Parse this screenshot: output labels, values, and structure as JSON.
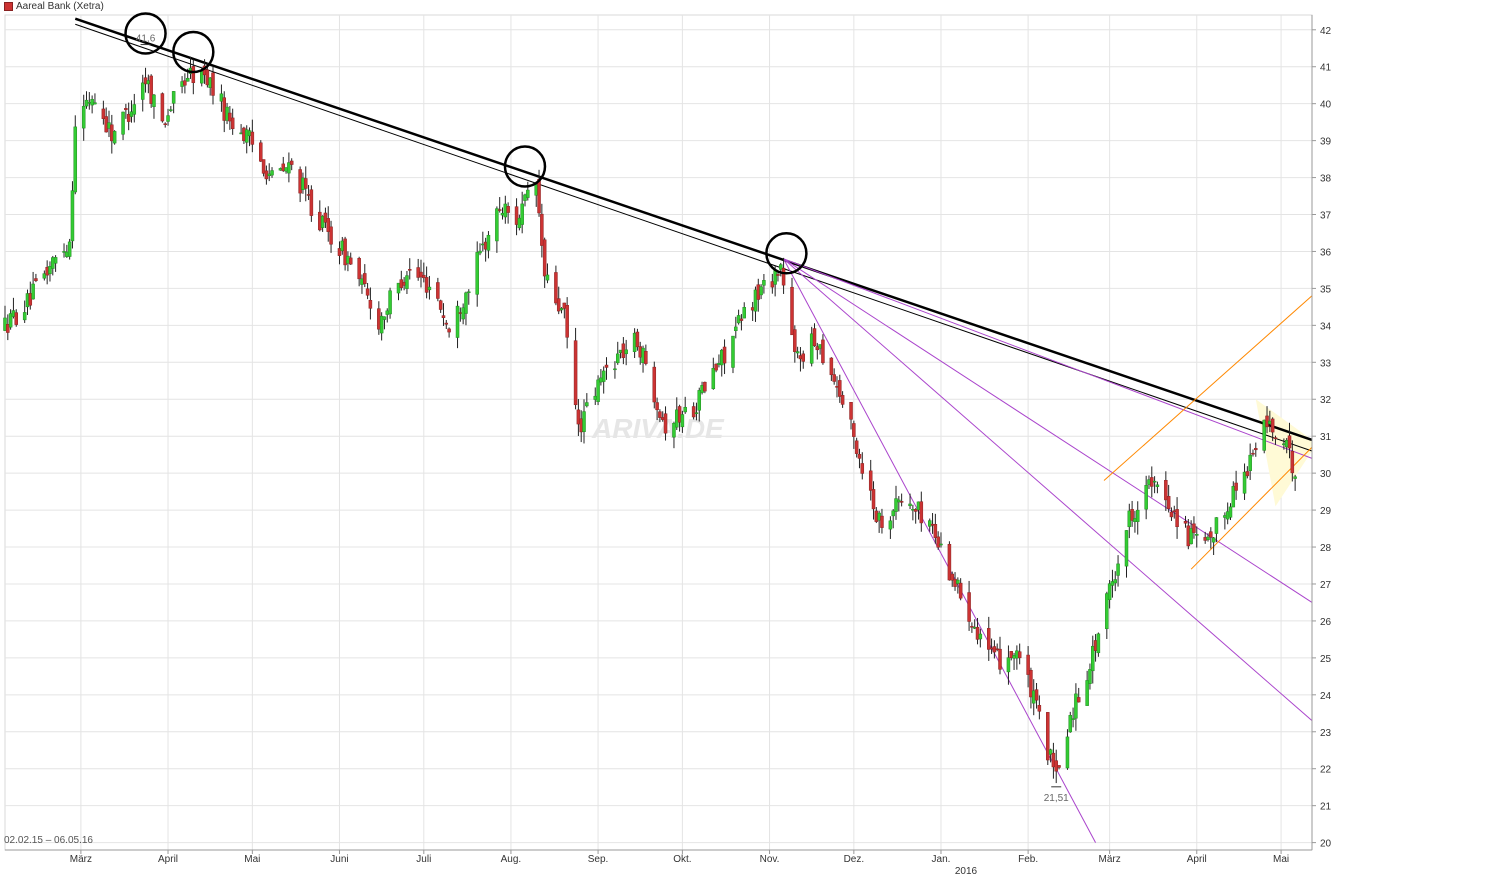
{
  "legend": {
    "label": "Aareal Bank (Xetra)",
    "color": "#cc3333"
  },
  "range_label": "02.02.15 – 06.05.16",
  "watermark": "ARIVA.DE",
  "year_label": "2016",
  "colors": {
    "up": "#33cc33",
    "down": "#cc3333",
    "trend": "#000000",
    "fan": "#aa44cc",
    "channel": "#ff8800",
    "triangle": "#fffad6"
  },
  "chart_data": {
    "type": "candlestick",
    "title": "",
    "y_ticks": [
      20,
      21,
      22,
      23,
      24,
      25,
      26,
      27,
      28,
      29,
      30,
      31,
      32,
      33,
      34,
      35,
      36,
      37,
      38,
      39,
      40,
      41,
      42
    ],
    "ylim": [
      19.8,
      42.4
    ],
    "x_range": [
      "2015-02-02",
      "2016-05-12"
    ],
    "x_ticks": [
      {
        "label": "März",
        "date": "2015-03-01"
      },
      {
        "label": "April",
        "date": "2015-04-01"
      },
      {
        "label": "Mai",
        "date": "2015-05-01"
      },
      {
        "label": "Juni",
        "date": "2015-06-01"
      },
      {
        "label": "Juli",
        "date": "2015-07-01"
      },
      {
        "label": "Aug.",
        "date": "2015-08-01"
      },
      {
        "label": "Sep.",
        "date": "2015-09-01"
      },
      {
        "label": "Okt.",
        "date": "2015-10-01"
      },
      {
        "label": "Nov.",
        "date": "2015-11-01"
      },
      {
        "label": "Dez.",
        "date": "2015-12-01"
      },
      {
        "label": "Jan.",
        "date": "2016-01-01"
      },
      {
        "label": "Feb.",
        "date": "2016-02-01"
      },
      {
        "label": "März",
        "date": "2016-03-01"
      },
      {
        "label": "April",
        "date": "2016-04-01"
      },
      {
        "label": "Mai",
        "date": "2016-05-01"
      }
    ],
    "grid": true,
    "annotations": [
      {
        "text": "41,6",
        "date": "2015-03-24",
        "value": 41.6
      },
      {
        "text": "21,51",
        "date": "2016-02-11",
        "value": 21.51
      }
    ],
    "path": [
      [
        "2015-02-02",
        34.0
      ],
      [
        "2015-02-10",
        34.6
      ],
      [
        "2015-02-18",
        35.6
      ],
      [
        "2015-02-25",
        36.3
      ],
      [
        "2015-02-27",
        39.5
      ],
      [
        "2015-03-05",
        40.2
      ],
      [
        "2015-03-12",
        39.2
      ],
      [
        "2015-03-18",
        39.8
      ],
      [
        "2015-03-24",
        40.7
      ],
      [
        "2015-03-30",
        39.5
      ],
      [
        "2015-04-08",
        40.8
      ],
      [
        "2015-04-15",
        40.7
      ],
      [
        "2015-04-22",
        39.7
      ],
      [
        "2015-04-30",
        39.0
      ],
      [
        "2015-05-08",
        38.0
      ],
      [
        "2015-05-15",
        38.3
      ],
      [
        "2015-05-25",
        36.8
      ],
      [
        "2015-06-05",
        35.7
      ],
      [
        "2015-06-15",
        34.1
      ],
      [
        "2015-06-25",
        35.5
      ],
      [
        "2015-07-05",
        35.0
      ],
      [
        "2015-07-10",
        33.8
      ],
      [
        "2015-07-20",
        35.7
      ],
      [
        "2015-07-28",
        37.2
      ],
      [
        "2015-08-03",
        36.9
      ],
      [
        "2015-08-10",
        37.8
      ],
      [
        "2015-08-13",
        35.3
      ],
      [
        "2015-08-20",
        34.2
      ],
      [
        "2015-08-25",
        31.2
      ],
      [
        "2015-09-05",
        33.0
      ],
      [
        "2015-09-15",
        33.6
      ],
      [
        "2015-09-25",
        31.3
      ],
      [
        "2015-10-05",
        31.8
      ],
      [
        "2015-10-15",
        33.1
      ],
      [
        "2015-10-25",
        34.6
      ],
      [
        "2015-11-05",
        35.6
      ],
      [
        "2015-11-10",
        33.1
      ],
      [
        "2015-11-18",
        33.6
      ],
      [
        "2015-11-25",
        32.4
      ],
      [
        "2015-12-02",
        30.7
      ],
      [
        "2015-12-10",
        28.7
      ],
      [
        "2015-12-18",
        29.3
      ],
      [
        "2015-12-28",
        28.7
      ],
      [
        "2016-01-05",
        27.2
      ],
      [
        "2016-01-12",
        26.1
      ],
      [
        "2016-01-20",
        24.9
      ],
      [
        "2016-01-28",
        25.2
      ],
      [
        "2016-02-04",
        23.6
      ],
      [
        "2016-02-11",
        21.7
      ],
      [
        "2016-02-16",
        23.4
      ],
      [
        "2016-02-24",
        25.1
      ],
      [
        "2016-03-01",
        26.8
      ],
      [
        "2016-03-08",
        28.8
      ],
      [
        "2016-03-15",
        29.7
      ],
      [
        "2016-03-22",
        29.2
      ],
      [
        "2016-03-29",
        28.3
      ],
      [
        "2016-04-05",
        28.0
      ],
      [
        "2016-04-12",
        29.2
      ],
      [
        "2016-04-19",
        30.2
      ],
      [
        "2016-04-26",
        31.4
      ],
      [
        "2016-05-03",
        30.6
      ],
      [
        "2016-05-06",
        30.1
      ]
    ],
    "overlays": [
      {
        "kind": "trendline",
        "width": 2.5,
        "from": [
          "2015-02-27",
          42.3
        ],
        "to": [
          "2016-05-12",
          30.9
        ]
      },
      {
        "kind": "trendline",
        "width": 1,
        "from": [
          "2015-02-27",
          42.15
        ],
        "to": [
          "2016-05-12",
          30.6
        ]
      },
      {
        "kind": "fan",
        "from": [
          "2015-11-06",
          35.8
        ],
        "to": [
          "2016-05-12",
          30.4
        ]
      },
      {
        "kind": "fan",
        "from": [
          "2015-11-06",
          35.8
        ],
        "to": [
          "2016-05-12",
          26.5
        ]
      },
      {
        "kind": "fan",
        "from": [
          "2015-11-06",
          35.8
        ],
        "to": [
          "2016-05-12",
          23.3
        ]
      },
      {
        "kind": "fan",
        "from": [
          "2015-11-06",
          35.8
        ],
        "to": [
          "2016-02-25",
          20.0
        ]
      },
      {
        "kind": "channel",
        "from": [
          "2016-02-28",
          29.8
        ],
        "to": [
          "2016-05-12",
          34.8
        ]
      },
      {
        "kind": "channel",
        "from": [
          "2016-03-30",
          27.4
        ],
        "to": [
          "2016-05-12",
          30.7
        ]
      }
    ],
    "highlight_circles": [
      {
        "date": "2015-03-24",
        "value": 41.9
      },
      {
        "date": "2015-04-10",
        "value": 41.4
      },
      {
        "date": "2015-08-06",
        "value": 38.3
      },
      {
        "date": "2015-11-07",
        "value": 35.95
      }
    ],
    "triangle": [
      [
        "2016-04-22",
        32.0
      ],
      [
        "2016-05-12",
        30.9
      ],
      [
        "2016-05-12",
        30.6
      ],
      [
        "2016-04-29",
        29.1
      ]
    ]
  }
}
